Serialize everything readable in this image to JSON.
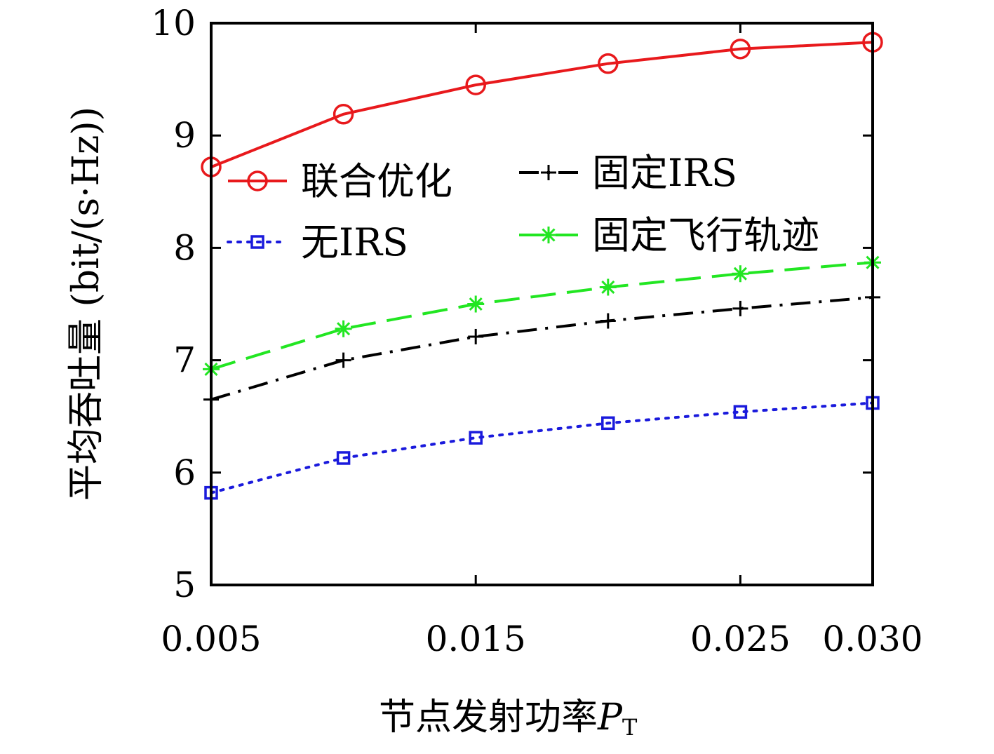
{
  "chart_data": {
    "type": "line",
    "title": "",
    "xlabel": "节点发射功率",
    "xlabel_symbol": "P",
    "xlabel_subscript": "T",
    "ylabel": "平均吞吐量 (bit/(s·Hz))",
    "xlim": [
      0.005,
      0.03
    ],
    "ylim": [
      5,
      10
    ],
    "xticks": [
      0.005,
      0.015,
      0.025,
      0.03
    ],
    "xtick_labels": [
      "0.005",
      "0.015",
      "0.025",
      "0.030"
    ],
    "yticks": [
      5,
      6,
      7,
      8,
      9,
      10
    ],
    "ytick_labels": [
      "5",
      "6",
      "7",
      "8",
      "9",
      "10"
    ],
    "grid": false,
    "legend_position": "top",
    "x": [
      0.005,
      0.01,
      0.015,
      0.02,
      0.025,
      0.03
    ],
    "series": [
      {
        "name": "联合优化",
        "values": [
          8.72,
          9.19,
          9.45,
          9.64,
          9.77,
          9.83
        ],
        "color": "#e8191c",
        "marker": "circle",
        "dash": "solid"
      },
      {
        "name": "固定IRS",
        "values": [
          6.65,
          7.0,
          7.21,
          7.35,
          7.46,
          7.56
        ],
        "color": "#000000",
        "marker": "plus",
        "dash": "dashdot"
      },
      {
        "name": "无IRS",
        "values": [
          5.82,
          6.13,
          6.31,
          6.44,
          6.54,
          6.62
        ],
        "color": "#1a1adc",
        "marker": "square",
        "dash": "dotted"
      },
      {
        "name": "固定飞行轨迹",
        "values": [
          6.92,
          7.28,
          7.5,
          7.65,
          7.77,
          7.87
        ],
        "color": "#22e622",
        "marker": "star",
        "dash": "dashed"
      }
    ]
  }
}
